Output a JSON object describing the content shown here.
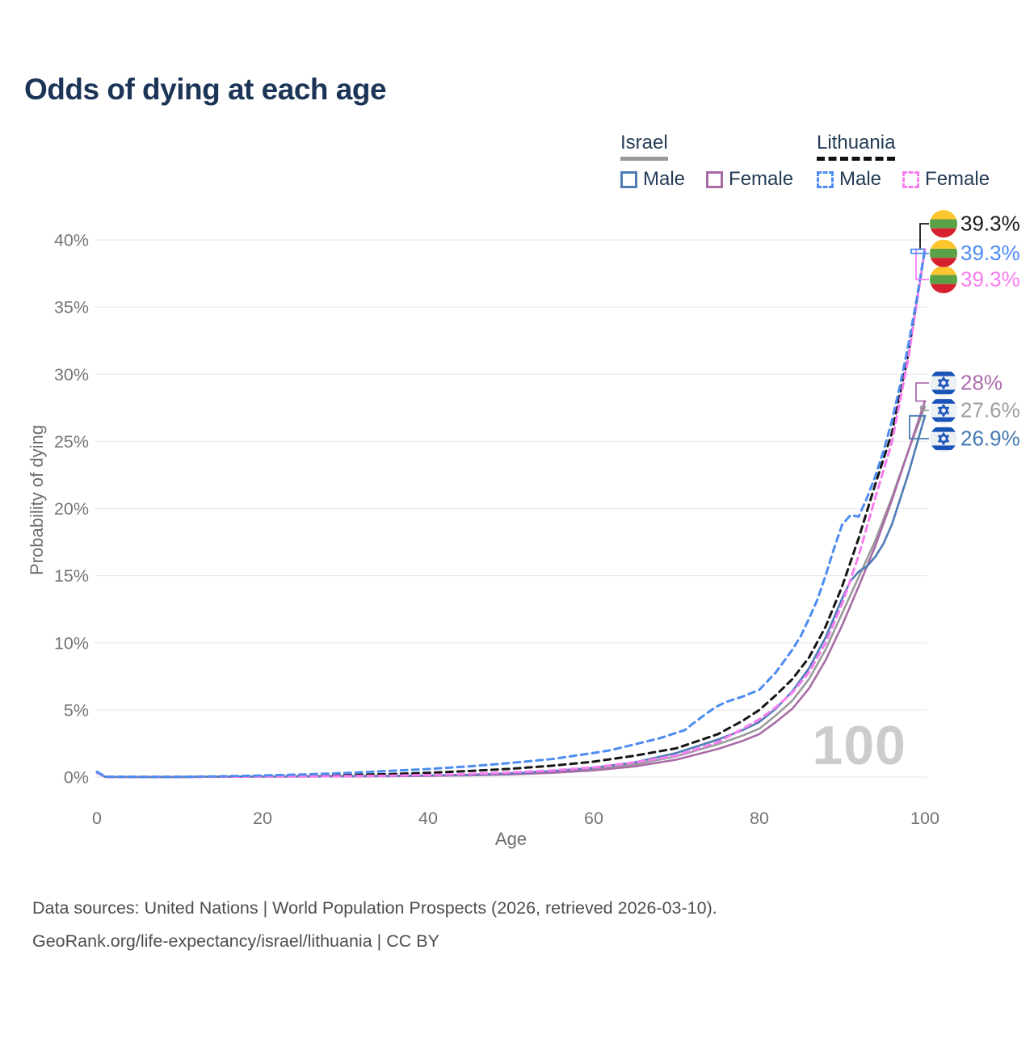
{
  "title": "Odds of dying at each age",
  "legend": {
    "groups": [
      {
        "label": "Israel",
        "underline": "solid",
        "underline_color": "#9a9a9a",
        "items": [
          {
            "label": "Male",
            "color": "#4e7cb5",
            "dash": false
          },
          {
            "label": "Female",
            "color": "#a86ba6",
            "dash": false
          }
        ]
      },
      {
        "label": "Lithuania",
        "underline": "dashed",
        "underline_color": "#111111",
        "items": [
          {
            "label": "Male",
            "color": "#4d8cf0",
            "dash": true
          },
          {
            "label": "Female",
            "color": "#f87df0",
            "dash": true
          }
        ]
      }
    ]
  },
  "watermark": "100",
  "footer": {
    "line1": "Data sources: United Nations | World Population Prospects (2026, retrieved 2026-03-10).",
    "line2": "GeoRank.org/life-expectancy/israel/lithuania | CC BY"
  },
  "chart_data": {
    "type": "line",
    "title": "Odds of dying at each age",
    "xlabel": "Age",
    "ylabel": "Probability of dying",
    "xlim": [
      0,
      100
    ],
    "ylim_pct": [
      0,
      40
    ],
    "xticks": [
      "0",
      "20",
      "40",
      "60",
      "80",
      "100"
    ],
    "xtick_values": [
      0,
      20,
      40,
      60,
      80,
      100
    ],
    "yticks": [
      "0%",
      "5%",
      "10%",
      "15%",
      "20%",
      "25%",
      "30%",
      "35%",
      "40%"
    ],
    "ytick_values": [
      0,
      5,
      10,
      15,
      20,
      25,
      30,
      35,
      40
    ],
    "grid": "horizontal-only",
    "legend_position": "top-right",
    "series": [
      {
        "name": "Israel",
        "color": "#9b9b9b",
        "dashed": false,
        "width": 2.6,
        "end_label": {
          "text": "27.6%",
          "color": "#9e9e9e",
          "flag": "il",
          "label_pct": 27.3,
          "elbow_x": 1140
        },
        "x": [
          0,
          1,
          5,
          10,
          15,
          20,
          25,
          30,
          35,
          40,
          45,
          50,
          55,
          60,
          65,
          70,
          75,
          78,
          80,
          82,
          84,
          86,
          88,
          90,
          92,
          94,
          96,
          98,
          100
        ],
        "y": [
          0.32,
          0.02,
          0.01,
          0.01,
          0.025,
          0.04,
          0.05,
          0.06,
          0.08,
          0.1,
          0.16,
          0.24,
          0.38,
          0.6,
          0.95,
          1.55,
          2.45,
          3.1,
          3.6,
          4.6,
          5.7,
          7.3,
          9.5,
          12.2,
          14.9,
          17.6,
          20.8,
          24.3,
          27.6
        ]
      },
      {
        "name": "Israel Female",
        "color": "#a86ba6",
        "dashed": false,
        "width": 2.6,
        "end_label": {
          "text": "28%",
          "color": "#ad6cac",
          "flag": "il",
          "label_pct": 29.35,
          "elbow_x": 1134
        },
        "x": [
          0,
          1,
          5,
          10,
          15,
          20,
          25,
          30,
          35,
          40,
          45,
          50,
          55,
          60,
          65,
          70,
          75,
          78,
          80,
          82,
          84,
          86,
          88,
          90,
          92,
          94,
          96,
          98,
          100
        ],
        "y": [
          0.3,
          0.02,
          0.01,
          0.01,
          0.02,
          0.03,
          0.04,
          0.05,
          0.06,
          0.09,
          0.13,
          0.2,
          0.32,
          0.5,
          0.8,
          1.3,
          2.1,
          2.7,
          3.2,
          4.1,
          5.1,
          6.6,
          8.7,
          11.3,
          14.2,
          17.2,
          20.6,
          24.3,
          28.0
        ]
      },
      {
        "name": "Israel Male",
        "color": "#4e7cb5",
        "dashed": false,
        "width": 2.6,
        "end_label": {
          "text": "26.9%",
          "color": "#4679b3",
          "flag": "il",
          "label_pct": 25.2,
          "elbow_x": 1126
        },
        "x": [
          0,
          1,
          5,
          10,
          15,
          20,
          25,
          30,
          35,
          40,
          45,
          50,
          55,
          60,
          65,
          70,
          75,
          78,
          80,
          82,
          84,
          86,
          88,
          90,
          91,
          92,
          93,
          94,
          95,
          96,
          98,
          100
        ],
        "y": [
          0.35,
          0.02,
          0.01,
          0.01,
          0.03,
          0.05,
          0.06,
          0.07,
          0.09,
          0.12,
          0.18,
          0.28,
          0.45,
          0.7,
          1.1,
          1.8,
          2.8,
          3.5,
          4.1,
          5.1,
          6.4,
          8.1,
          10.4,
          13.3,
          14.6,
          15.3,
          15.7,
          16.4,
          17.4,
          18.8,
          22.6,
          26.9
        ]
      },
      {
        "name": "Lithuania",
        "color": "#161616",
        "dashed": true,
        "width": 3,
        "end_label": {
          "text": "39.3%",
          "color": "#1a1a1a",
          "flag": "lt",
          "label_pct": 41.2,
          "elbow_x": 1139
        },
        "x": [
          0,
          1,
          5,
          10,
          15,
          20,
          25,
          30,
          35,
          40,
          45,
          50,
          55,
          60,
          65,
          70,
          75,
          78,
          80,
          82,
          84,
          86,
          88,
          90,
          92,
          94,
          96,
          98,
          100
        ],
        "y": [
          0.37,
          0.02,
          0.01,
          0.015,
          0.04,
          0.07,
          0.1,
          0.15,
          0.22,
          0.32,
          0.45,
          0.62,
          0.85,
          1.15,
          1.6,
          2.15,
          3.2,
          4.2,
          5.0,
          6.1,
          7.3,
          8.9,
          11.2,
          14.2,
          17.8,
          21.8,
          25.6,
          31.5,
          39.3
        ]
      },
      {
        "name": "Lithuania Female",
        "color": "#f87df0",
        "dashed": true,
        "width": 3,
        "end_label": {
          "text": "39.3%",
          "color": "#f87df0",
          "flag": "lt",
          "label_pct": 37.05,
          "elbow_x": 1134
        },
        "x": [
          0,
          1,
          5,
          10,
          15,
          20,
          25,
          30,
          35,
          40,
          45,
          50,
          55,
          60,
          65,
          70,
          75,
          78,
          80,
          82,
          84,
          86,
          88,
          90,
          92,
          94,
          96,
          98,
          100
        ],
        "y": [
          0.33,
          0.02,
          0.01,
          0.01,
          0.025,
          0.04,
          0.05,
          0.07,
          0.1,
          0.15,
          0.23,
          0.35,
          0.5,
          0.72,
          1.1,
          1.6,
          2.6,
          3.6,
          4.3,
          5.2,
          6.3,
          7.8,
          10.0,
          12.9,
          16.5,
          20.8,
          24.9,
          31.2,
          39.3
        ]
      },
      {
        "name": "Lithuania Male",
        "color": "#4d8cf0",
        "dashed": true,
        "width": 3,
        "end_label": {
          "text": "39.3%",
          "color": "#4b8bf4",
          "flag": "lt",
          "label_pct": 39.0,
          "elbow_x": 1128
        },
        "x": [
          0,
          1,
          5,
          10,
          15,
          20,
          25,
          30,
          35,
          40,
          45,
          50,
          55,
          60,
          62,
          64,
          66,
          68,
          70,
          71,
          72,
          74,
          75,
          76,
          78,
          80,
          82,
          84,
          85,
          86,
          87,
          88,
          89,
          90,
          91,
          92,
          93,
          94,
          95,
          96,
          97,
          98,
          99,
          100
        ],
        "y": [
          0.4,
          0.03,
          0.02,
          0.02,
          0.06,
          0.12,
          0.2,
          0.3,
          0.45,
          0.6,
          0.8,
          1.05,
          1.35,
          1.8,
          2.0,
          2.3,
          2.6,
          2.9,
          3.3,
          3.5,
          4.0,
          4.9,
          5.3,
          5.6,
          6.0,
          6.5,
          7.8,
          9.5,
          10.5,
          11.8,
          13.2,
          15.0,
          17.0,
          18.8,
          19.5,
          19.4,
          20.8,
          22.4,
          24.3,
          26.5,
          29.2,
          32.2,
          35.6,
          39.3
        ]
      }
    ],
    "annotations": [
      {
        "text": "100",
        "role": "age-watermark",
        "color": "#cccccc"
      }
    ],
    "flag_colors": {
      "lt": {
        "yellow": "#fdc62f",
        "green": "#5aa245",
        "red": "#d6202f"
      },
      "il": {
        "background": "#eef1f4",
        "blue": "#1953b8"
      }
    }
  }
}
